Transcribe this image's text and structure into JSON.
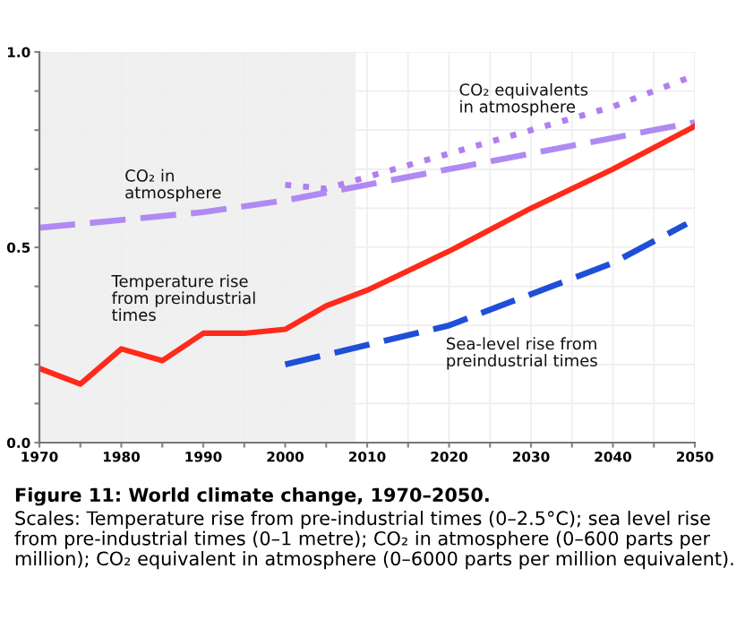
{
  "chart_data": {
    "type": "line",
    "title": "Figure 11: World climate change, 1970–2050.",
    "annotations": [
      "Scales: Temperature rise from pre-industrial times (0–2.5°C); sea level rise from pre-industrial times (0–1 metre); CO₂ in atmosphere (0–600 parts per million); CO₂ equivalent in atmosphere (0–6000 parts per million equivalent)."
    ],
    "series": [
      {
        "name": "CO₂ equivalents in atmosphere",
        "color": "#b07ff0",
        "line_style": "dotted",
        "x": [
          2000,
          2005,
          2010,
          2020,
          2030,
          2040,
          2050
        ],
        "values": [
          0.66,
          0.65,
          0.68,
          0.74,
          0.8,
          0.86,
          0.94
        ]
      },
      {
        "name": "CO₂ in atmosphere",
        "color": "#b08af2",
        "line_style": "dashed",
        "x": [
          1970,
          1980,
          1990,
          2000,
          2010,
          2020,
          2030,
          2040,
          2050
        ],
        "values": [
          0.55,
          0.57,
          0.59,
          0.62,
          0.66,
          0.7,
          0.74,
          0.78,
          0.82
        ]
      },
      {
        "name": "Temperature rise from preindustrial times",
        "color": "#ff2a1a",
        "line_style": "solid",
        "x": [
          1970,
          1975,
          1980,
          1985,
          1990,
          1995,
          2000,
          2005,
          2010,
          2015,
          2020,
          2030,
          2040,
          2050
        ],
        "values": [
          0.19,
          0.15,
          0.24,
          0.21,
          0.28,
          0.28,
          0.29,
          0.35,
          0.39,
          0.44,
          0.49,
          0.6,
          0.7,
          0.81
        ]
      },
      {
        "name": "Sea-level rise from preindustrial times",
        "color": "#1f4fd6",
        "line_style": "dashed",
        "x": [
          2000,
          2010,
          2020,
          2030,
          2040,
          2049
        ],
        "values": [
          0.2,
          0.25,
          0.3,
          0.38,
          0.46,
          0.56
        ]
      }
    ],
    "bands": [
      {
        "axis": "x",
        "from": 1970,
        "to": 2008.6,
        "color": "#f0f0f0"
      }
    ],
    "xlim": [
      1970,
      2050
    ],
    "xticks": [
      1970,
      {
        "value": 1975,
        "label": null
      },
      1980,
      {
        "value": 1985,
        "label": null
      },
      1990,
      {
        "value": 1995,
        "label": null
      },
      2000,
      {
        "value": 2005,
        "label": null
      },
      2010,
      {
        "value": 2015,
        "label": null
      },
      2020,
      {
        "value": 2025,
        "label": null
      },
      2030,
      {
        "value": 2035,
        "label": null
      },
      2040,
      {
        "value": 2045,
        "label": null
      },
      2050
    ],
    "ylim": [
      0,
      1
    ],
    "yticks": [
      {
        "value": 0,
        "label": "0.0"
      },
      {
        "value": 0.1,
        "label": null
      },
      {
        "value": 0.2,
        "label": null
      },
      {
        "value": 0.3,
        "label": null
      },
      {
        "value": 0.4,
        "label": null
      },
      0.5,
      {
        "value": 0.6,
        "label": null
      },
      {
        "value": 0.7,
        "label": null
      },
      {
        "value": 0.8,
        "label": null
      },
      {
        "value": 0.9,
        "label": null
      },
      {
        "value": 1,
        "label": "1.0"
      }
    ],
    "grid": true
  }
}
